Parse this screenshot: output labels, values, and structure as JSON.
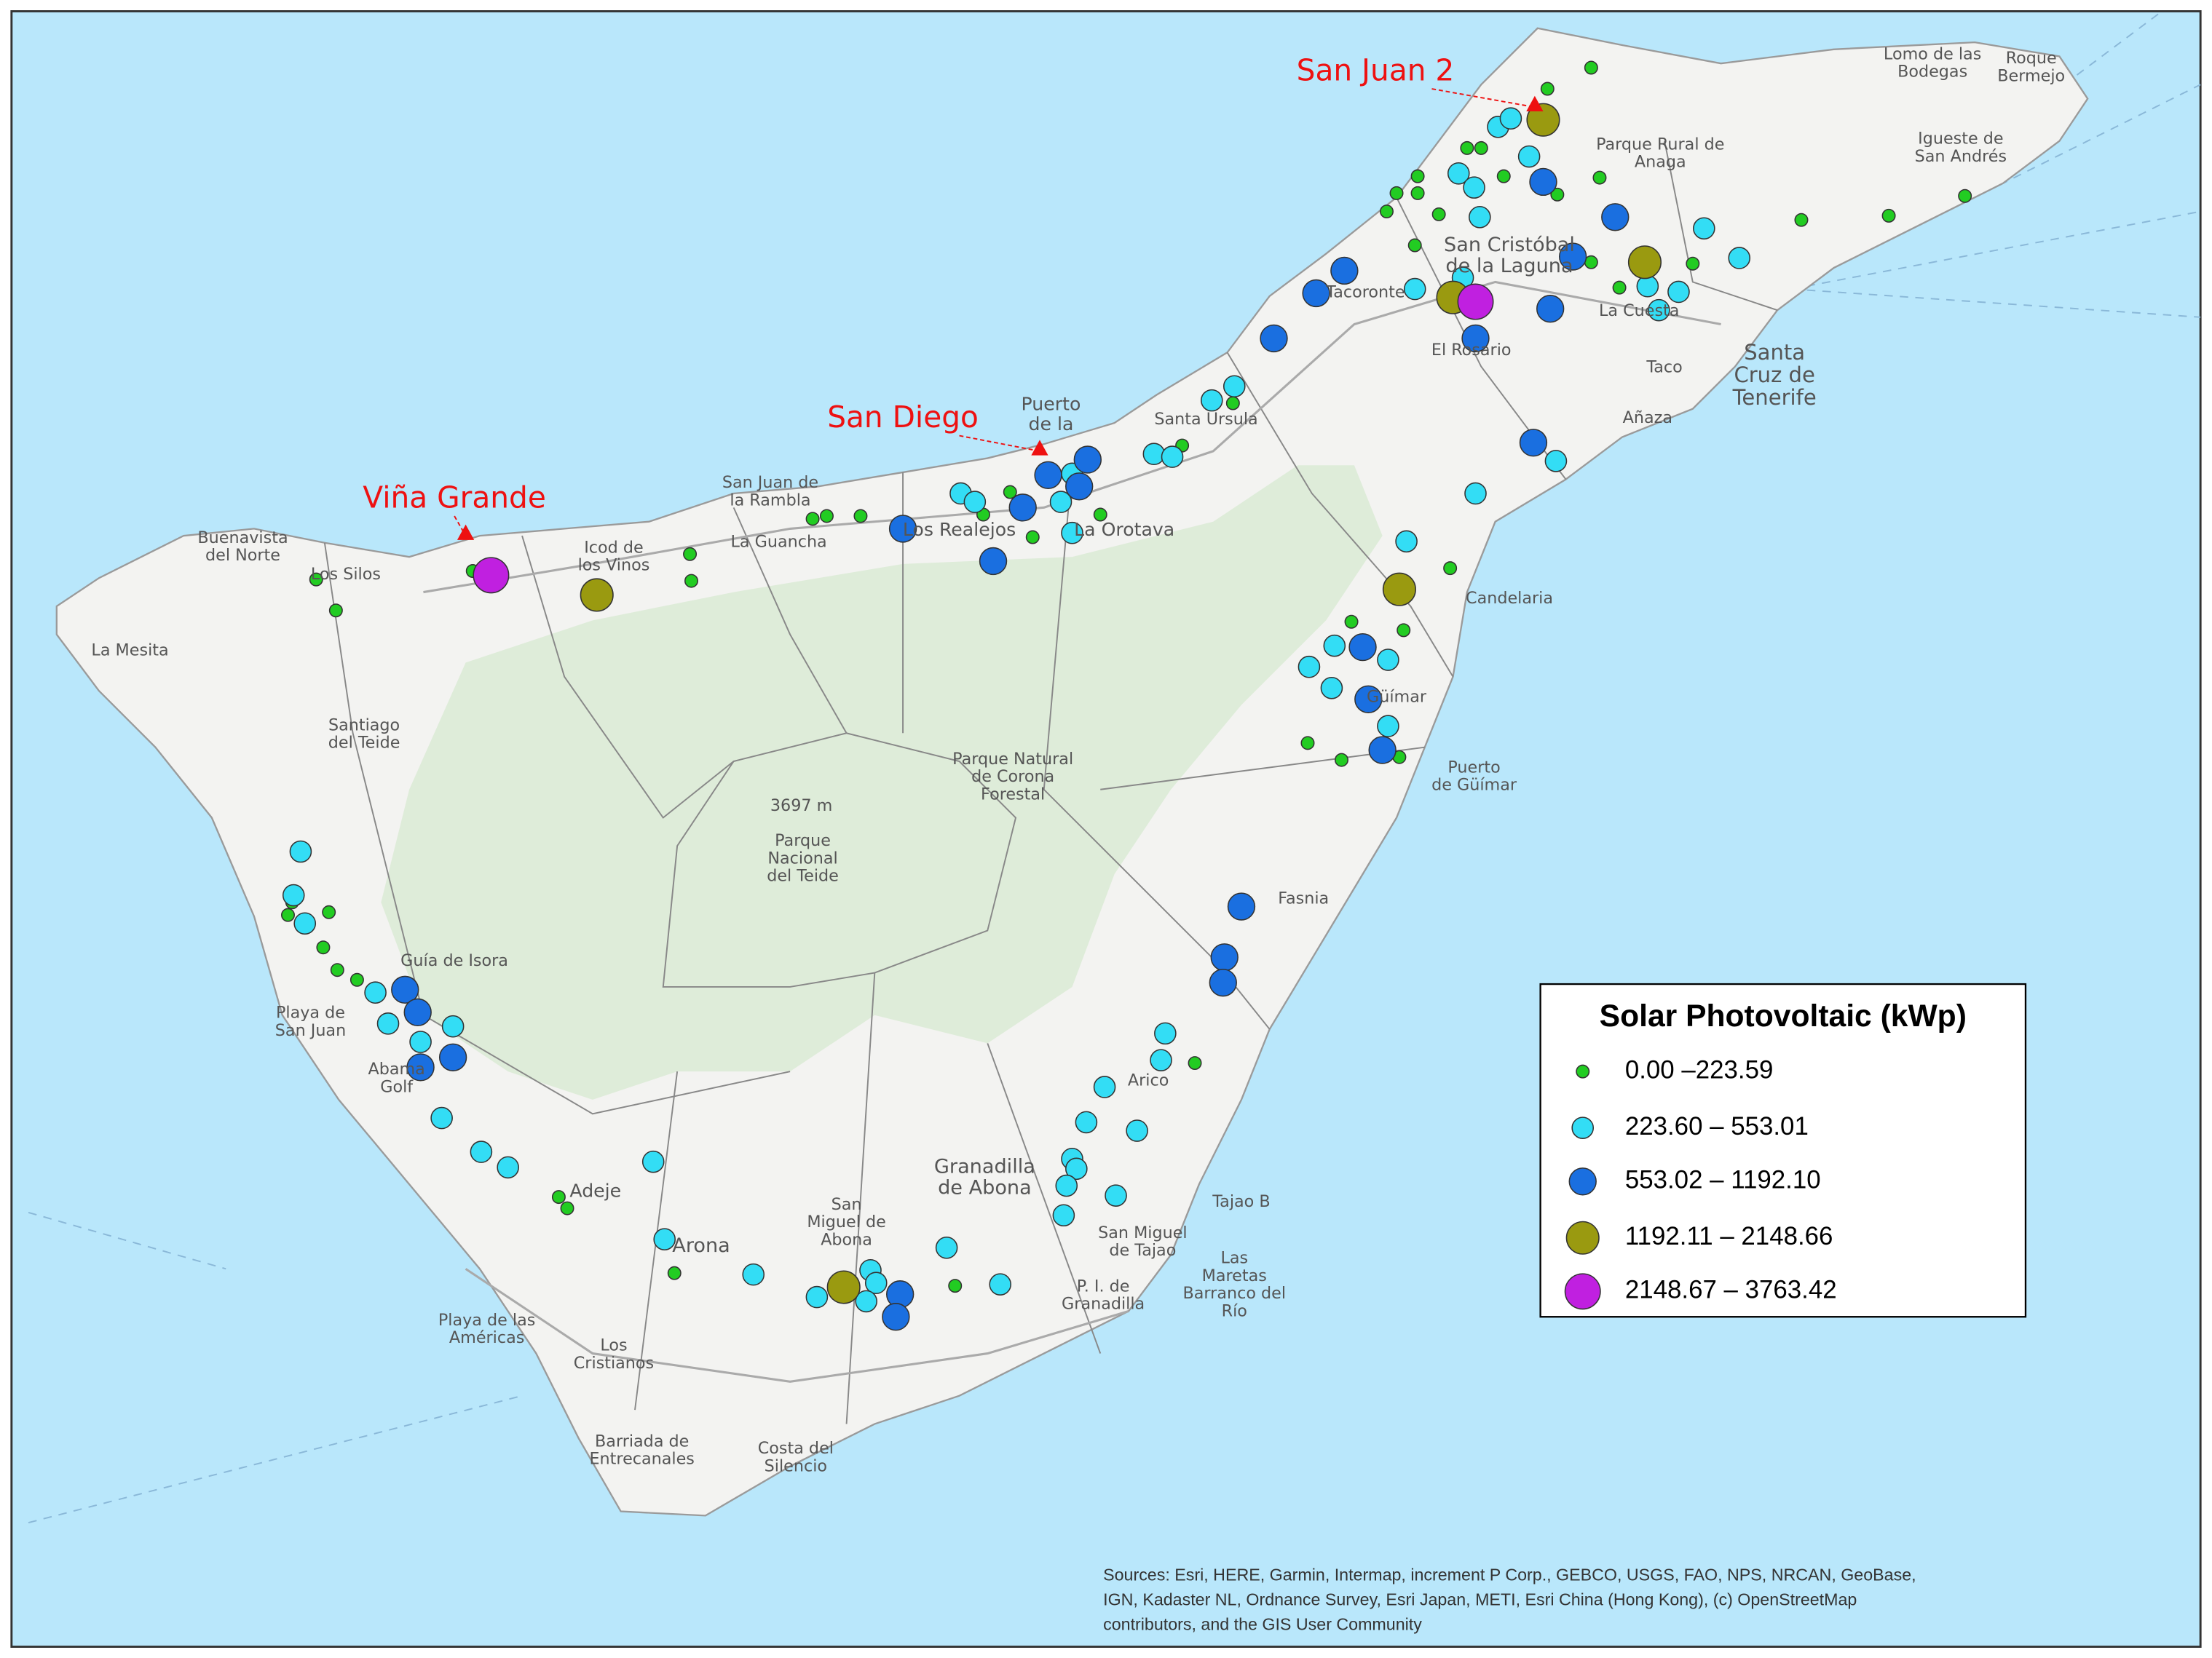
{
  "map": {
    "annotations": [
      "San Juan 2",
      "San Diego",
      "Viña Grande"
    ],
    "legend": {
      "title": "Solar Photovoltaic (kWp)",
      "classes": [
        "0.00 –223.59",
        "223.60 – 553.01",
        "553.02 – 1192.10",
        "1192.11 – 2148.66",
        "2148.67 – 3763.42"
      ]
    },
    "places": [
      [
        "Santa",
        "Cruz de",
        "Tenerife"
      ],
      [
        "San Cristóbal",
        "de la Laguna"
      ],
      [
        "Los Silos"
      ],
      [
        "Buenavista",
        "del Norte"
      ],
      [
        "La Mesita"
      ],
      [
        "Icod de",
        "los Vinos"
      ],
      [
        "San Juan de",
        "la Rambla"
      ],
      [
        "La Guancha"
      ],
      [
        "Los Realejos"
      ],
      [
        "La Orotava"
      ],
      [
        "Puerto",
        "de la"
      ],
      [
        "Santa Ursula"
      ],
      [
        "Tacoronte"
      ],
      [
        "El Rosario"
      ],
      [
        "La Cuesta"
      ],
      [
        "Taco"
      ],
      [
        "Añaza"
      ],
      [
        "Candelaria"
      ],
      [
        "Güímar"
      ],
      [
        "Puerto",
        "de Güímar"
      ],
      [
        "Fasnia"
      ],
      [
        "Arico"
      ],
      [
        "Granadilla",
        "de Abona"
      ],
      [
        "San Miguel",
        "de Tajao"
      ],
      [
        "Tajao B"
      ],
      [
        "Las",
        "Maretas",
        "Barranco del",
        "Río"
      ],
      [
        "P. I. de",
        "Granadilla"
      ],
      [
        "San",
        "Miguel de",
        "Abona"
      ],
      [
        "Arona"
      ],
      [
        "Adeje"
      ],
      [
        "Playa de las",
        "Américas"
      ],
      [
        "Los",
        "Cristianos"
      ],
      [
        "Barriada de",
        "Entrecanales"
      ],
      [
        "Costa del",
        "Silencio"
      ],
      [
        "Guía de Isora"
      ],
      [
        "Playa de",
        "San Juan"
      ],
      [
        "Abama",
        "Golf"
      ],
      [
        "Santiago",
        "del Teide"
      ],
      [
        "Parque Natural",
        "de Corona",
        "Forestal"
      ],
      [
        "3697 m"
      ],
      [
        "Parque",
        "Nacional",
        "del Teide"
      ],
      [
        "Parque Rural de",
        "Anaga"
      ],
      [
        "Igueste de",
        "San Andrés"
      ],
      [
        "Lomo de las",
        "Bodegas"
      ],
      [
        "Roque",
        "Bermejo"
      ]
    ],
    "sources": [
      "Sources: Esri, HERE, Garmin, Intermap, increment P Corp., GEBCO, USGS, FAO, NPS, NRCAN, GeoBase,",
      "IGN, Kadaster NL, Ordnance Survey, Esri Japan, METI, Esri China (Hong Kong), (c) OpenStreetMap",
      "contributors, and the GIS User Community"
    ]
  }
}
